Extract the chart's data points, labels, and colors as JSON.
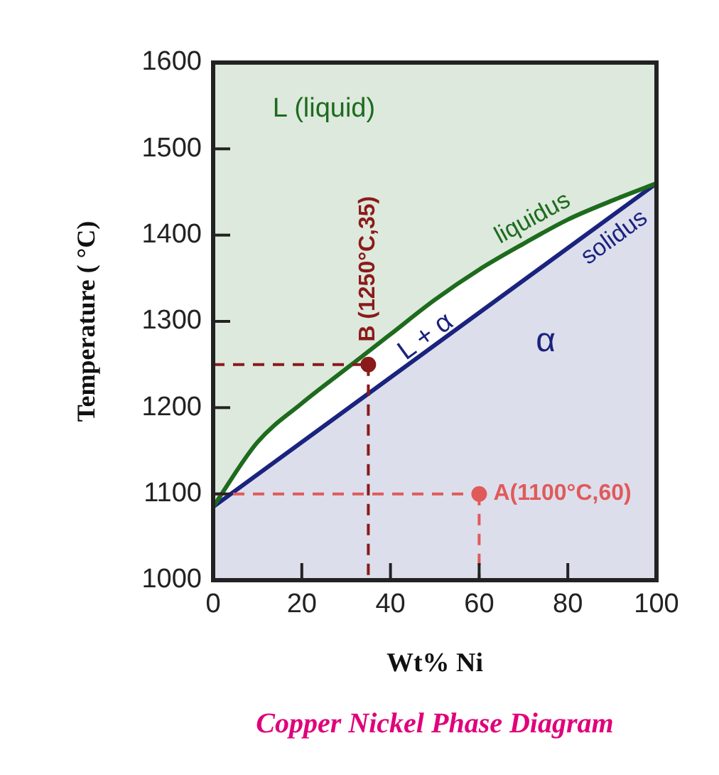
{
  "chart_data": {
    "type": "line",
    "title": "Copper Nickel Phase Diagram",
    "xlabel": "Wt% Ni",
    "ylabel": "Temperature ( °C)",
    "xlim": [
      0,
      100
    ],
    "xticks": [
      0,
      20,
      40,
      60,
      80,
      100
    ],
    "ylim": [
      1000,
      1600
    ],
    "yticks": [
      1000,
      1100,
      1200,
      1300,
      1400,
      1500,
      1600
    ],
    "grid": false,
    "legend": false,
    "marker": "none",
    "series": [
      {
        "name": "liquidus",
        "color": "#1e6b1e",
        "x": [
          0,
          10,
          20,
          30,
          40,
          50,
          60,
          70,
          80,
          90,
          100
        ],
        "values": [
          1085,
          1160,
          1205,
          1245,
          1285,
          1325,
          1360,
          1390,
          1418,
          1440,
          1460
        ]
      },
      {
        "name": "solidus",
        "type": "area",
        "color": "#1a237e",
        "x": [
          0,
          100
        ],
        "values": [
          1085,
          1460
        ]
      },
      {
        "type": "scatter",
        "color": "#8b1a1a",
        "marker": "circle",
        "line_style": "dashed",
        "x": [
          35
        ],
        "values": [
          1250
        ]
      },
      {
        "type": "scatter",
        "color": "#e05a5a",
        "marker": "circle",
        "line_style": "dashed",
        "x": [
          60
        ],
        "values": [
          1100
        ]
      }
    ],
    "annotations": [
      "L (liquid)",
      "L + α",
      "α",
      {
        "text": "B (1250°C,35)",
        "x": 35,
        "y": 1250
      },
      {
        "text": "A(1100°C,60)",
        "x": 60,
        "y": 1100
      }
    ]
  }
}
